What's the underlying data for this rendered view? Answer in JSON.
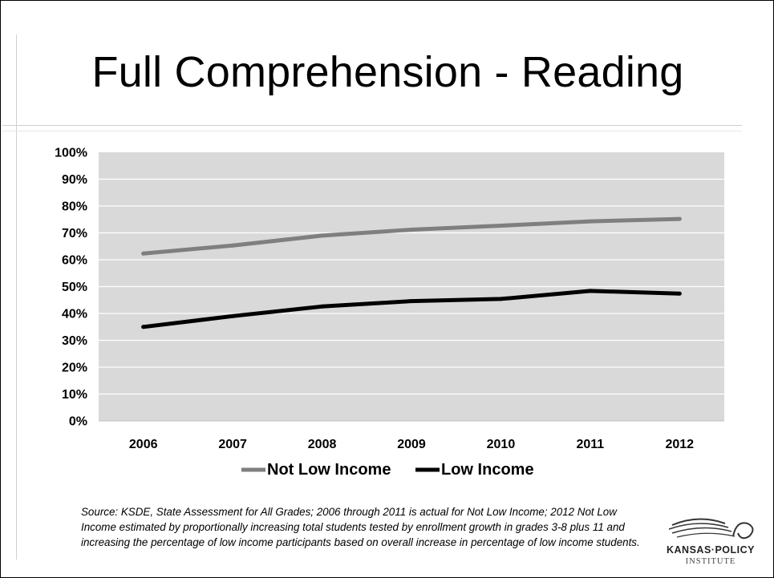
{
  "slide": {
    "title": "Full Comprehension - Reading",
    "source_note": "Source: KSDE, State Assessment for All  Grades; 2006 through 2011 is actual for Not Low Income; 2012 Not Low Income estimated by proportionally increasing total students tested by enrollment growth in grades 3-8 plus 11 and increasing the percentage of low income participants based on overall increase in percentage of low income students.",
    "logo": {
      "name": "KANSAS·POLICY",
      "subtitle": "INSTITUTE"
    }
  },
  "colors": {
    "not_low_income": "#7f7f7f",
    "low_income": "#000000",
    "plot_background": "#d9d9d9",
    "gridline": "#ffffff"
  },
  "chart_data": {
    "type": "line",
    "title": "",
    "xlabel": "",
    "ylabel": "",
    "categories": [
      "2006",
      "2007",
      "2008",
      "2009",
      "2010",
      "2011",
      "2012"
    ],
    "y_tick_labels": [
      "0%",
      "10%",
      "20%",
      "30%",
      "40%",
      "50%",
      "60%",
      "70%",
      "80%",
      "90%",
      "100%"
    ],
    "ylim": [
      0,
      100
    ],
    "grid": true,
    "legend_position": "bottom",
    "series": [
      {
        "name": "Not Low Income",
        "values": [
          62.3,
          65.3,
          69.0,
          71.2,
          72.7,
          74.3,
          75.2
        ]
      },
      {
        "name": "Low Income",
        "values": [
          35.0,
          39.0,
          42.6,
          44.6,
          45.4,
          48.4,
          47.4
        ]
      }
    ]
  }
}
